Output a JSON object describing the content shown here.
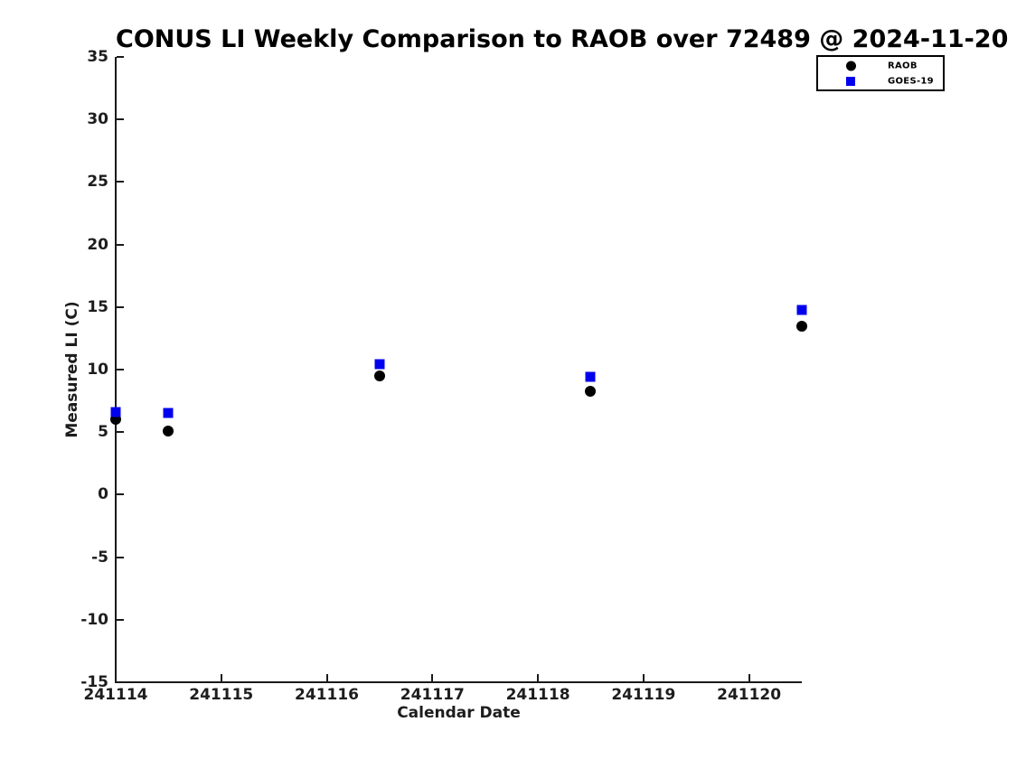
{
  "chart_data": {
    "type": "scatter",
    "title": "CONUS LI Weekly Comparison to RAOB over 72489 @ 2024-11-20",
    "xlabel": "Calendar Date",
    "ylabel": "Measured LI (C)",
    "xlim": [
      241114,
      241120.5
    ],
    "ylim": [
      -15,
      35
    ],
    "xticks": [
      241114,
      241115,
      241116,
      241117,
      241118,
      241119,
      241120
    ],
    "yticks": [
      35,
      30,
      25,
      20,
      15,
      10,
      5,
      0,
      -5,
      -10,
      -15
    ],
    "grid": false,
    "legend_position": "upper-right",
    "x": [
      241114.0,
      241114.5,
      241116.5,
      241118.5,
      241120.5
    ],
    "series": [
      {
        "name": "RAOB",
        "marker": "circle",
        "color": "#000000",
        "values": [
          6.0,
          5.1,
          9.5,
          8.3,
          13.5
        ]
      },
      {
        "name": "GOES-19",
        "marker": "square",
        "color": "#0000ee",
        "values": [
          6.6,
          6.5,
          10.4,
          9.4,
          14.8
        ]
      }
    ]
  },
  "colors": {
    "axis": "#1a1a1a",
    "text": "#1d1d1d",
    "background": "#ffffff"
  }
}
